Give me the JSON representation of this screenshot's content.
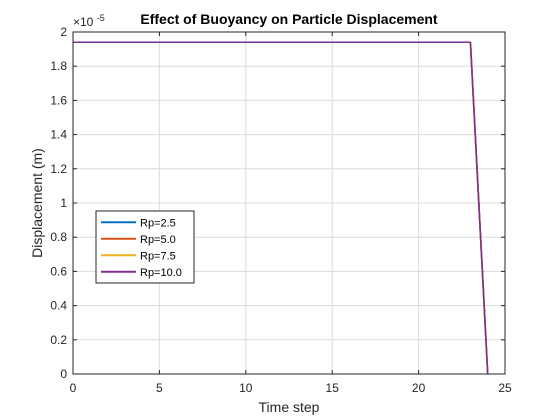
{
  "chart_data": {
    "type": "line",
    "title": "Effect of Buoyancy on Particle Displacement",
    "xlabel": "Time step",
    "ylabel": "Displacement (m)",
    "y_exponent_label": "×10",
    "y_exponent_power": "-5",
    "xlim": [
      0,
      25
    ],
    "ylim": [
      0,
      2
    ],
    "x_ticks": [
      0,
      5,
      10,
      15,
      20,
      25
    ],
    "x_tick_labels": [
      "0",
      "5",
      "10",
      "15",
      "20",
      "25"
    ],
    "y_ticks": [
      0,
      0.2,
      0.4,
      0.6,
      0.8,
      1,
      1.2,
      1.4,
      1.6,
      1.8,
      2
    ],
    "y_tick_labels": [
      "0",
      "0.2",
      "0.4",
      "0.6",
      "0.8",
      "1",
      "1.2",
      "1.4",
      "1.6",
      "1.8",
      "2"
    ],
    "grid": true,
    "legend_position": "center-left",
    "series": [
      {
        "name": "Rp=2.5",
        "color": "#0072BD",
        "x": [
          0,
          23,
          24
        ],
        "y": [
          1.94,
          1.94,
          0
        ]
      },
      {
        "name": "Rp=5.0",
        "color": "#D95319",
        "x": [
          0,
          23,
          24
        ],
        "y": [
          1.94,
          1.94,
          0
        ]
      },
      {
        "name": "Rp=7.5",
        "color": "#EDB120",
        "x": [
          0,
          23,
          24
        ],
        "y": [
          1.94,
          1.94,
          0
        ]
      },
      {
        "name": "Rp=10.0",
        "color": "#7E2F8E",
        "x": [
          0,
          23,
          24
        ],
        "y": [
          1.94,
          1.94,
          0
        ]
      }
    ]
  }
}
